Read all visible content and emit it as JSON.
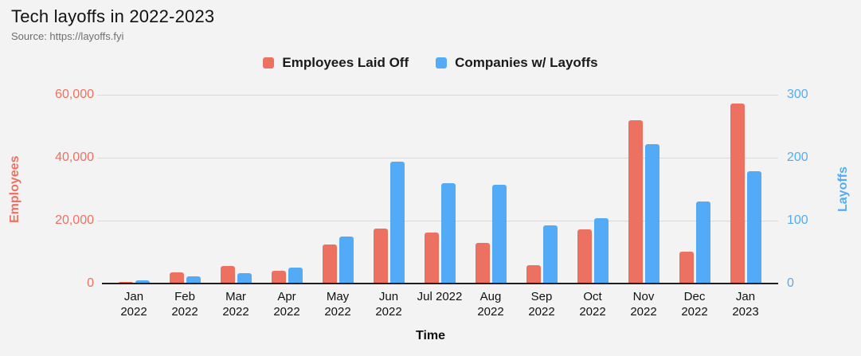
{
  "header": {
    "title": "Tech layoffs in 2022-2023",
    "source": "Source: https://layoffs.fyi"
  },
  "legend": [
    {
      "label": "Employees Laid Off",
      "color": "#ed7161"
    },
    {
      "label": "Companies w/ Layoffs",
      "color": "#54abf5"
    }
  ],
  "chart_data": {
    "type": "bar",
    "title": "Tech layoffs in 2022-2023",
    "source": "Source: https://layoffs.fyi",
    "categories": [
      "Jan 2022",
      "Feb 2022",
      "Mar 2022",
      "Apr 2022",
      "May 2022",
      "Jun 2022",
      "Jul 2022",
      "Aug 2022",
      "Sep 2022",
      "Oct 2022",
      "Nov 2022",
      "Dec 2022",
      "Jan 2023"
    ],
    "x_tick_lines": [
      [
        "Jan",
        "2022"
      ],
      [
        "Feb",
        "2022"
      ],
      [
        "Mar",
        "2022"
      ],
      [
        "Apr",
        "2022"
      ],
      [
        "May",
        "2022"
      ],
      [
        "Jun",
        "2022"
      ],
      [
        "Jul 2022"
      ],
      [
        "Aug",
        "2022"
      ],
      [
        "Sep",
        "2022"
      ],
      [
        "Oct",
        "2022"
      ],
      [
        "Nov",
        "2022"
      ],
      [
        "Dec",
        "2022"
      ],
      [
        "Jan",
        "2023"
      ]
    ],
    "series": [
      {
        "name": "Employees Laid Off",
        "axis": "left",
        "color": "#ed7161",
        "values": [
          600,
          3500,
          5500,
          4000,
          12300,
          17500,
          16100,
          13000,
          5700,
          17100,
          51800,
          10200,
          57200
        ]
      },
      {
        "name": "Companies w/ Layoffs",
        "axis": "right",
        "color": "#54abf5",
        "values": [
          5,
          11,
          16,
          25,
          75,
          194,
          160,
          157,
          93,
          104,
          222,
          130,
          178
        ]
      }
    ],
    "xlabel": "Time",
    "left_axis": {
      "label": "Employees",
      "color": "#ed7161",
      "ticks": [
        0,
        20000,
        40000,
        60000
      ],
      "range": [
        0,
        60000
      ]
    },
    "right_axis": {
      "label": "Layoffs",
      "color": "#54abf5",
      "ticks": [
        0,
        100,
        200,
        300
      ],
      "range": [
        0,
        300
      ]
    },
    "grid": true,
    "legend_position": "top",
    "background": "#f3f3f3",
    "gridline_color": "#d9d9d9",
    "baseline_color": "#212121"
  }
}
